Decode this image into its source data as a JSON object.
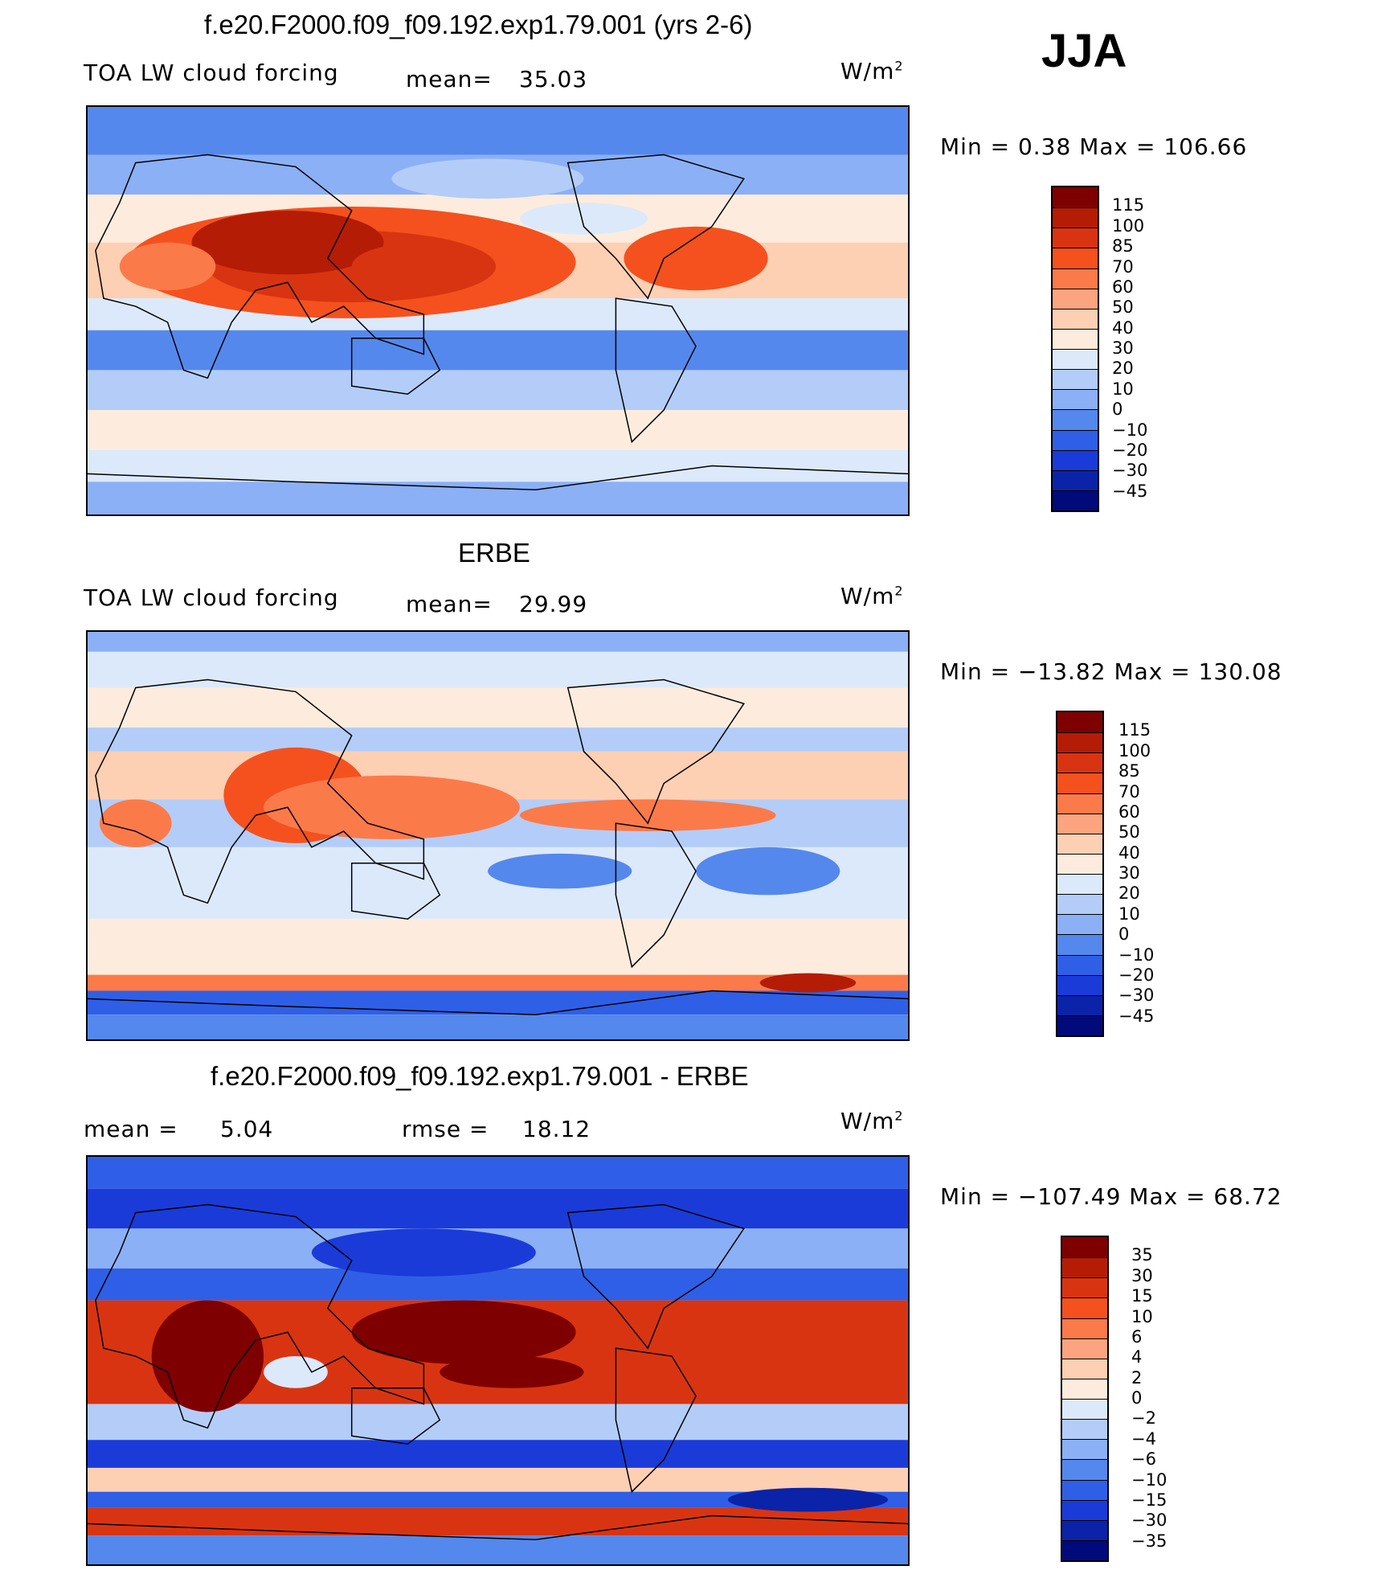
{
  "season": "JJA",
  "units_label": "W/m",
  "units_exp": "2",
  "panels": [
    {
      "title": "f.e20.F2000.f09_f09.192.exp1.79.001 (yrs 2-6)",
      "left_label": "TOA LW cloud forcing",
      "mid_label": "mean=",
      "mid_value": "35.03",
      "minmax": "Min =   0.38 Max = 106.66"
    },
    {
      "title": "ERBE",
      "left_label": "TOA LW cloud forcing",
      "mid_label": "mean=",
      "mid_value": "29.99",
      "minmax": "Min = −13.82 Max = 130.08"
    },
    {
      "title": "f.e20.F2000.f09_f09.192.exp1.79.001 - ERBE",
      "left_label": "mean =",
      "left_value": "5.04",
      "mid_label": "rmse =",
      "mid_value": "18.12",
      "minmax": "Min = −107.49 Max =  68.72"
    }
  ],
  "colorbars": {
    "abs_levels": [
      "115",
      "100",
      "85",
      "70",
      "60",
      "50",
      "40",
      "30",
      "20",
      "10",
      "0",
      "−10",
      "−20",
      "−30",
      "−45"
    ],
    "diff_levels": [
      "35",
      "30",
      "15",
      "10",
      "6",
      "4",
      "2",
      "0",
      "−2",
      "−4",
      "−6",
      "−10",
      "−15",
      "−30",
      "−35"
    ],
    "colors": [
      "#7f0000",
      "#b51c06",
      "#d93411",
      "#f4511e",
      "#fb7a4a",
      "#fca47f",
      "#fdcfb3",
      "#fdecdd",
      "#dce9fa",
      "#b3cdf8",
      "#8bb0f5",
      "#5588ec",
      "#2f5fe6",
      "#1a3bd8",
      "#0b23a8",
      "#000a7a"
    ]
  },
  "chart_data": {
    "type": "heatmap",
    "description_fields": "Global lat-lon contour maps of TOA longwave cloud forcing, June-July-August",
    "maps": [
      {
        "name": "model",
        "title": "f.e20.F2000.f09_f09.192.exp1.79.001 (yrs 2-6)",
        "mean": 35.03,
        "min": 0.38,
        "max": 106.66,
        "units": "W/m2",
        "levels": [
          115,
          100,
          85,
          70,
          60,
          50,
          40,
          30,
          20,
          10,
          0,
          -10,
          -20,
          -30,
          -45
        ]
      },
      {
        "name": "obs",
        "title": "ERBE",
        "mean": 29.99,
        "min": -13.82,
        "max": 130.08,
        "units": "W/m2",
        "levels": [
          115,
          100,
          85,
          70,
          60,
          50,
          40,
          30,
          20,
          10,
          0,
          -10,
          -20,
          -30,
          -45
        ]
      },
      {
        "name": "difference",
        "title": "f.e20.F2000.f09_f09.192.exp1.79.001 - ERBE",
        "mean": 5.04,
        "rmse": 18.12,
        "min": -107.49,
        "max": 68.72,
        "units": "W/m2",
        "levels": [
          35,
          30,
          15,
          10,
          6,
          4,
          2,
          0,
          -2,
          -4,
          -6,
          -10,
          -15,
          -30,
          -35
        ]
      }
    ]
  }
}
